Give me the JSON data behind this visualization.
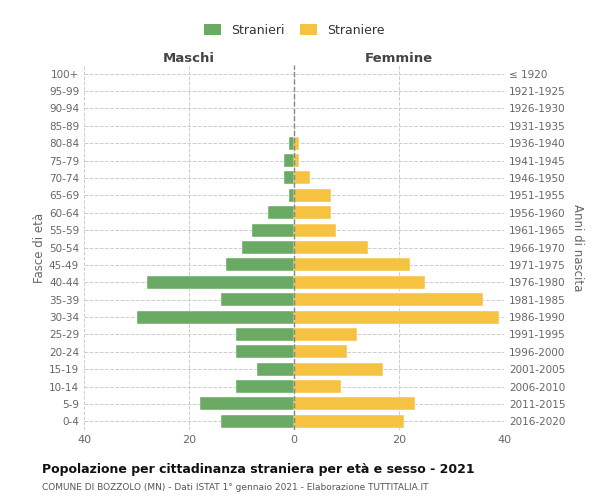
{
  "age_groups": [
    "100+",
    "95-99",
    "90-94",
    "85-89",
    "80-84",
    "75-79",
    "70-74",
    "65-69",
    "60-64",
    "55-59",
    "50-54",
    "45-49",
    "40-44",
    "35-39",
    "30-34",
    "25-29",
    "20-24",
    "15-19",
    "10-14",
    "5-9",
    "0-4"
  ],
  "birth_years": [
    "≤ 1920",
    "1921-1925",
    "1926-1930",
    "1931-1935",
    "1936-1940",
    "1941-1945",
    "1946-1950",
    "1951-1955",
    "1956-1960",
    "1961-1965",
    "1966-1970",
    "1971-1975",
    "1976-1980",
    "1981-1985",
    "1986-1990",
    "1991-1995",
    "1996-2000",
    "2001-2005",
    "2006-2010",
    "2011-2015",
    "2016-2020"
  ],
  "males": [
    0,
    0,
    0,
    0,
    1,
    2,
    2,
    1,
    5,
    8,
    10,
    13,
    28,
    14,
    30,
    11,
    11,
    7,
    11,
    18,
    14
  ],
  "females": [
    0,
    0,
    0,
    0,
    1,
    1,
    3,
    7,
    7,
    8,
    14,
    22,
    25,
    36,
    39,
    12,
    10,
    17,
    9,
    23,
    21
  ],
  "color_males": "#6aaa64",
  "color_females": "#f5c242",
  "title": "Popolazione per cittadinanza straniera per età e sesso - 2021",
  "subtitle": "COMUNE DI BOZZOLO (MN) - Dati ISTAT 1° gennaio 2021 - Elaborazione TUTTITALIA.IT",
  "label_maschi": "Maschi",
  "label_femmine": "Femmine",
  "ylabel_left": "Fasce di età",
  "ylabel_right": "Anni di nascita",
  "legend_stranieri": "Stranieri",
  "legend_straniere": "Straniere",
  "xlim": 40,
  "background_color": "#ffffff",
  "grid_color": "#cccccc"
}
